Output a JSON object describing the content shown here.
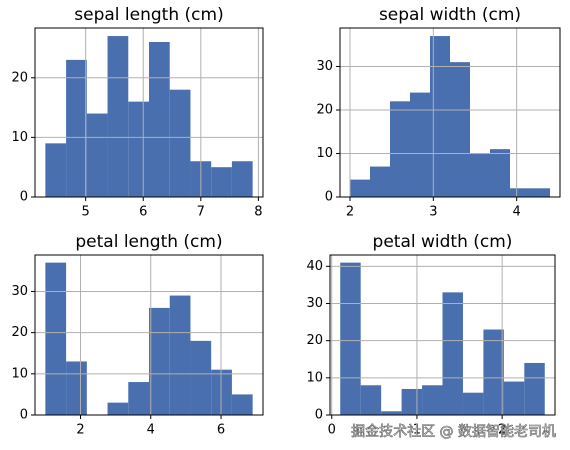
{
  "chart_data": [
    {
      "type": "histogram",
      "title": "sepal length (cm)",
      "bins": [
        4.3,
        4.66,
        5.02,
        5.38,
        5.74,
        6.1,
        6.46,
        6.82,
        7.18,
        7.54,
        7.9
      ],
      "values": [
        9,
        23,
        14,
        27,
        16,
        26,
        18,
        6,
        5,
        6
      ],
      "color": "#4a6fae",
      "xlim": [
        4.12,
        8.08
      ],
      "ylim": [
        0,
        28.35
      ],
      "xticks": [
        5,
        6,
        7,
        8
      ],
      "yticks": [
        0,
        10,
        20
      ],
      "grid": true
    },
    {
      "type": "histogram",
      "title": "sepal width (cm)",
      "bins": [
        2.0,
        2.24,
        2.48,
        2.72,
        2.96,
        3.2,
        3.44,
        3.68,
        3.92,
        4.16,
        4.4
      ],
      "values": [
        4,
        7,
        22,
        24,
        37,
        31,
        10,
        11,
        2,
        2
      ],
      "color": "#4a6fae",
      "xlim": [
        1.88,
        4.52
      ],
      "ylim": [
        0,
        38.85
      ],
      "xticks": [
        2,
        3,
        4
      ],
      "yticks": [
        0,
        10,
        20,
        30
      ],
      "grid": true
    },
    {
      "type": "histogram",
      "title": "petal length (cm)",
      "bins": [
        1.0,
        1.59,
        2.18,
        2.77,
        3.36,
        3.95,
        4.54,
        5.13,
        5.72,
        6.31,
        6.9
      ],
      "values": [
        37,
        13,
        0,
        3,
        8,
        26,
        29,
        18,
        11,
        5
      ],
      "color": "#4a6fae",
      "xlim": [
        0.705,
        7.195
      ],
      "ylim": [
        0,
        38.85
      ],
      "xticks": [
        2,
        4,
        6
      ],
      "yticks": [
        0,
        10,
        20,
        30
      ],
      "grid": true
    },
    {
      "type": "histogram",
      "title": "petal width (cm)",
      "bins": [
        0.1,
        0.34,
        0.58,
        0.82,
        1.06,
        1.3,
        1.54,
        1.78,
        2.02,
        2.26,
        2.5
      ],
      "values": [
        41,
        8,
        1,
        7,
        8,
        33,
        6,
        23,
        9,
        14
      ],
      "color": "#4a6fae",
      "xlim": [
        -0.02,
        2.62
      ],
      "ylim": [
        0,
        43.05
      ],
      "xticks": [
        0,
        1,
        2
      ],
      "yticks": [
        0,
        10,
        20,
        30,
        40
      ],
      "grid": true
    }
  ],
  "watermark": "掘金技术社区 @ 数据智能老司机"
}
